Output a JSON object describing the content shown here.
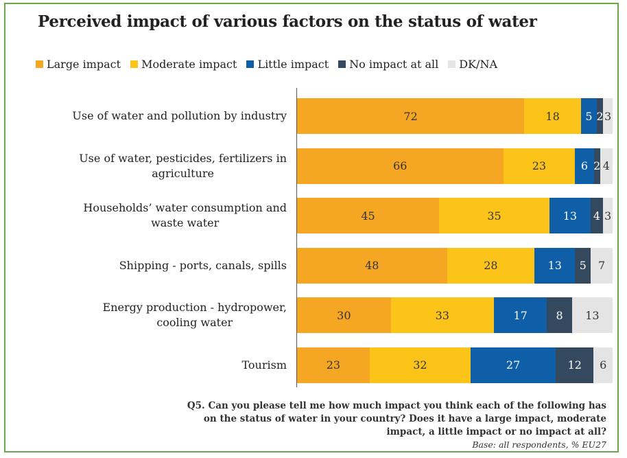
{
  "chart_data": {
    "type": "bar",
    "orientation": "horizontal-stacked",
    "title": "Perceived impact of various factors on the status of water",
    "categories": [
      [
        "Use of water and pollution by industry"
      ],
      [
        "Use of water, pesticides, fertilizers in",
        "agriculture"
      ],
      [
        "Households’ water consumption and",
        "waste water"
      ],
      [
        "Shipping - ports, canals, spills"
      ],
      [
        "Energy production - hydropower,",
        "cooling water"
      ],
      [
        "Tourism"
      ]
    ],
    "series": [
      {
        "name": "Large impact",
        "color": "#f5a623",
        "text_color": "#333333",
        "values": [
          72,
          66,
          45,
          48,
          30,
          23
        ]
      },
      {
        "name": "Moderate impact",
        "color": "#fcc419",
        "text_color": "#333333",
        "values": [
          18,
          23,
          35,
          28,
          33,
          32
        ]
      },
      {
        "name": "Little impact",
        "color": "#0e5fa8",
        "text_color": "#ffffff",
        "values": [
          5,
          6,
          13,
          13,
          17,
          27
        ]
      },
      {
        "name": "No impact at all",
        "color": "#34495e",
        "text_color": "#ffffff",
        "values": [
          2,
          2,
          4,
          5,
          8,
          12
        ]
      },
      {
        "name": "DK/NA",
        "color": "#e4e4e4",
        "text_color": "#333333",
        "values": [
          3,
          4,
          3,
          7,
          13,
          6
        ]
      }
    ],
    "xlim": [
      0,
      100
    ],
    "legend_position": "top",
    "grid": false
  },
  "footnote": {
    "lines": [
      "Q5. Can you please tell me how much impact you think each of the following has",
      "on the status of water in your country? Does it have a large impact, moderate",
      "impact, a little impact or no impact at all?"
    ],
    "base": "Base: all respondents, % EU27"
  }
}
